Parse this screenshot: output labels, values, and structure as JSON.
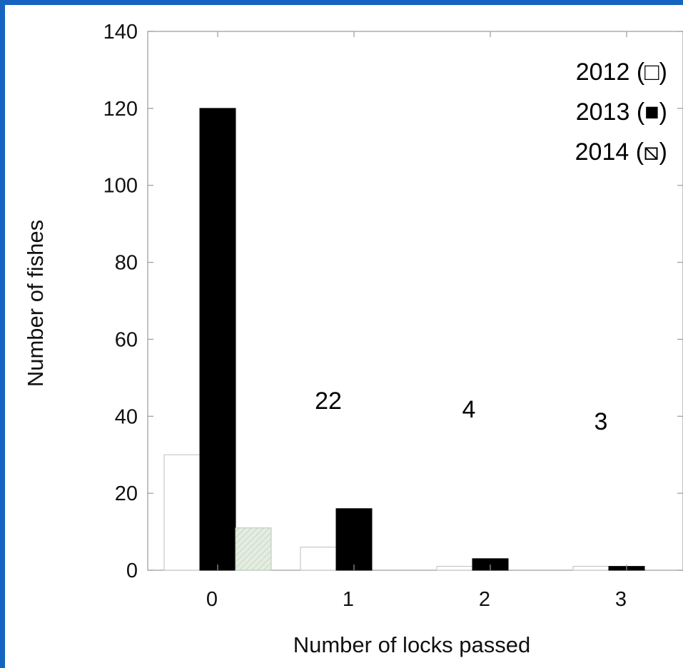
{
  "chart_data": {
    "type": "bar",
    "categories": [
      "0",
      "1",
      "2",
      "3"
    ],
    "series": [
      {
        "name": "2012 (□)",
        "values": [
          30,
          6,
          1,
          1
        ],
        "color": "#ffffff"
      },
      {
        "name": "2013 (■)",
        "values": [
          120,
          16,
          3,
          1
        ],
        "color": "#000000"
      },
      {
        "name": "2014 (⧅)",
        "values": [
          11,
          0,
          0,
          0
        ],
        "color": "#dfe9dc"
      }
    ],
    "xlabel": "Number of locks passed",
    "ylabel": "Number of fishes",
    "ylim": [
      0,
      140
    ],
    "yticks": [
      "0",
      "20",
      "40",
      "60",
      "80",
      "100",
      "120",
      "140"
    ],
    "annotations": [
      "22",
      "4",
      "3"
    ],
    "legend_position": "top-right",
    "grid": false
  }
}
